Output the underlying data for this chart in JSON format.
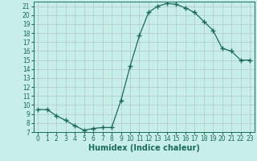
{
  "x": [
    0,
    1,
    2,
    3,
    4,
    5,
    6,
    7,
    8,
    9,
    10,
    11,
    12,
    13,
    14,
    15,
    16,
    17,
    18,
    19,
    20,
    21,
    22,
    23
  ],
  "y": [
    9.5,
    9.5,
    8.8,
    8.3,
    7.7,
    7.2,
    7.4,
    7.5,
    7.5,
    10.5,
    14.3,
    17.7,
    20.3,
    21.0,
    21.3,
    21.2,
    20.8,
    20.3,
    19.3,
    18.3,
    16.3,
    16.0,
    15.0,
    15.0
  ],
  "line_color": "#1a6b5a",
  "marker": "+",
  "marker_size": 4,
  "bg_color": "#c8eeea",
  "grid_color": "#b0c8c4",
  "xlabel": "Humidex (Indice chaleur)",
  "xlim": [
    -0.5,
    23.5
  ],
  "ylim": [
    7,
    21.5
  ],
  "yticks": [
    7,
    8,
    9,
    10,
    11,
    12,
    13,
    14,
    15,
    16,
    17,
    18,
    19,
    20,
    21
  ],
  "xticks": [
    0,
    1,
    2,
    3,
    4,
    5,
    6,
    7,
    8,
    9,
    10,
    11,
    12,
    13,
    14,
    15,
    16,
    17,
    18,
    19,
    20,
    21,
    22,
    23
  ],
  "tick_label_fontsize": 5.5,
  "xlabel_fontsize": 7.0,
  "linewidth": 0.9,
  "marker_linewidth": 1.0
}
